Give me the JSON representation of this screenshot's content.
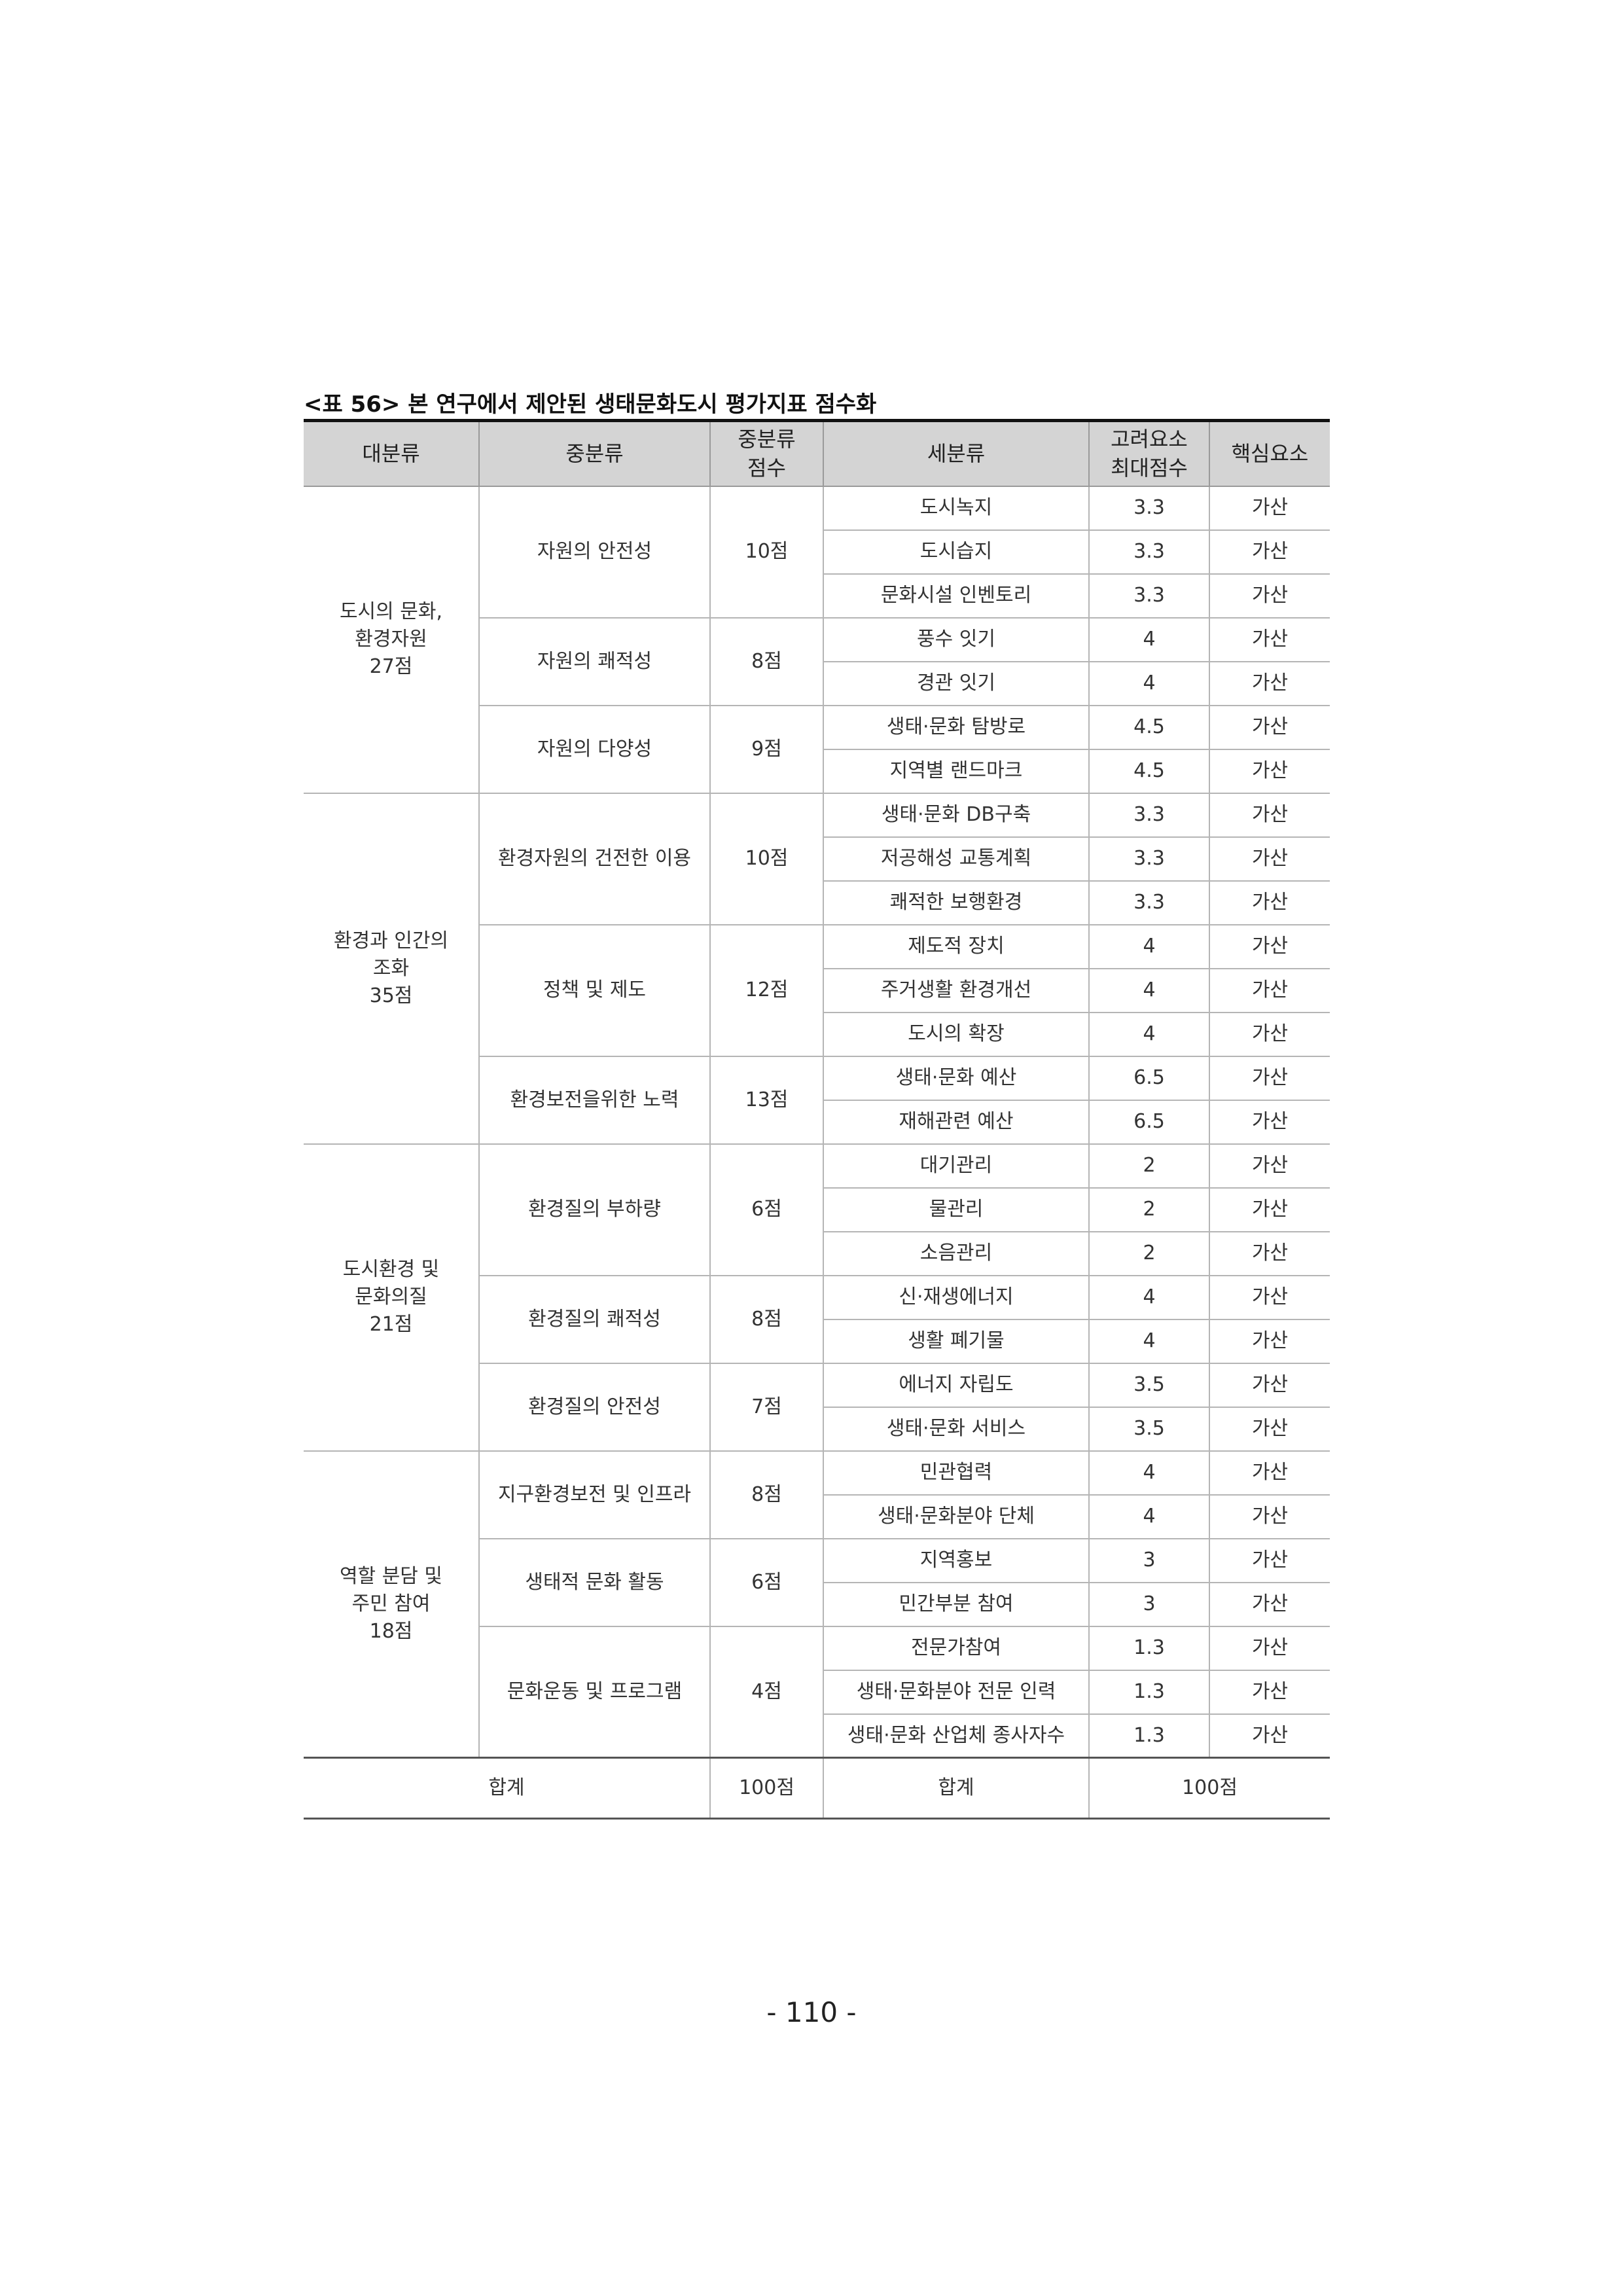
{
  "caption": "<표 56> 본 연구에서 제안된 생태문화도시 평가지표 점수화",
  "headers": {
    "major": "대분류",
    "mid": "중분류",
    "mid_score": "중분류\n점수",
    "sub": "세분류",
    "max_score": "고려요소\n최대점수",
    "core": "핵심요소"
  },
  "groups": [
    {
      "label": "도시의 문화,\n환경자원\n27점",
      "mids": [
        {
          "name": "자원의 안전성",
          "score": "10점",
          "items": [
            {
              "sub": "도시녹지",
              "max": "3.3",
              "core": "가산"
            },
            {
              "sub": "도시습지",
              "max": "3.3",
              "core": "가산"
            },
            {
              "sub": "문화시설 인벤토리",
              "max": "3.3",
              "core": "가산"
            }
          ]
        },
        {
          "name": "자원의 쾌적성",
          "score": "8점",
          "items": [
            {
              "sub": "풍수 잇기",
              "max": "4",
              "core": "가산"
            },
            {
              "sub": "경관 잇기",
              "max": "4",
              "core": "가산"
            }
          ]
        },
        {
          "name": "자원의 다양성",
          "score": "9점",
          "items": [
            {
              "sub": "생태·문화 탐방로",
              "max": "4.5",
              "core": "가산"
            },
            {
              "sub": "지역별 랜드마크",
              "max": "4.5",
              "core": "가산"
            }
          ]
        }
      ]
    },
    {
      "label": "환경과 인간의\n조화\n35점",
      "mids": [
        {
          "name": "환경자원의 건전한 이용",
          "score": "10점",
          "items": [
            {
              "sub": "생태·문화 DB구축",
              "max": "3.3",
              "core": "가산"
            },
            {
              "sub": "저공해성 교통계획",
              "max": "3.3",
              "core": "가산"
            },
            {
              "sub": "쾌적한 보행환경",
              "max": "3.3",
              "core": "가산"
            }
          ]
        },
        {
          "name": "정책 및 제도",
          "score": "12점",
          "items": [
            {
              "sub": "제도적 장치",
              "max": "4",
              "core": "가산"
            },
            {
              "sub": "주거생활 환경개선",
              "max": "4",
              "core": "가산"
            },
            {
              "sub": "도시의 확장",
              "max": "4",
              "core": "가산"
            }
          ]
        },
        {
          "name": "환경보전을위한 노력",
          "score": "13점",
          "items": [
            {
              "sub": "생태·문화 예산",
              "max": "6.5",
              "core": "가산"
            },
            {
              "sub": "재해관련 예산",
              "max": "6.5",
              "core": "가산"
            }
          ]
        }
      ]
    },
    {
      "label": "도시환경 및\n문화의질\n21점",
      "mids": [
        {
          "name": "환경질의 부하량",
          "score": "6점",
          "items": [
            {
              "sub": "대기관리",
              "max": "2",
              "core": "가산"
            },
            {
              "sub": "물관리",
              "max": "2",
              "core": "가산"
            },
            {
              "sub": "소음관리",
              "max": "2",
              "core": "가산"
            }
          ]
        },
        {
          "name": "환경질의 쾌적성",
          "score": "8점",
          "items": [
            {
              "sub": "신·재생에너지",
              "max": "4",
              "core": "가산"
            },
            {
              "sub": "생활 폐기물",
              "max": "4",
              "core": "가산"
            }
          ]
        },
        {
          "name": "환경질의 안전성",
          "score": "7점",
          "items": [
            {
              "sub": "에너지 자립도",
              "max": "3.5",
              "core": "가산"
            },
            {
              "sub": "생태·문화 서비스",
              "max": "3.5",
              "core": "가산"
            }
          ]
        }
      ]
    },
    {
      "label": "역할 분담 및\n주민 참여\n18점",
      "mids": [
        {
          "name": "지구환경보전 및 인프라",
          "score": "8점",
          "items": [
            {
              "sub": "민관협력",
              "max": "4",
              "core": "가산"
            },
            {
              "sub": "생태·문화분야 단체",
              "max": "4",
              "core": "가산"
            }
          ]
        },
        {
          "name": "생태적 문화 활동",
          "score": "6점",
          "items": [
            {
              "sub": "지역홍보",
              "max": "3",
              "core": "가산"
            },
            {
              "sub": "민간부분 참여",
              "max": "3",
              "core": "가산"
            }
          ]
        },
        {
          "name": "문화운동 및 프로그램",
          "score": "4점",
          "items": [
            {
              "sub": "전문가참여",
              "max": "1.3",
              "core": "가산"
            },
            {
              "sub": "생태·문화분야 전문 인력",
              "max": "1.3",
              "core": "가산"
            },
            {
              "sub": "생태·문화 산업체 종사자수",
              "max": "1.3",
              "core": "가산"
            }
          ]
        }
      ]
    }
  ],
  "total": {
    "label_left": "합계",
    "score_left": "100점",
    "label_right": "합계",
    "score_right": "100점"
  },
  "page_number": "- 110 -"
}
